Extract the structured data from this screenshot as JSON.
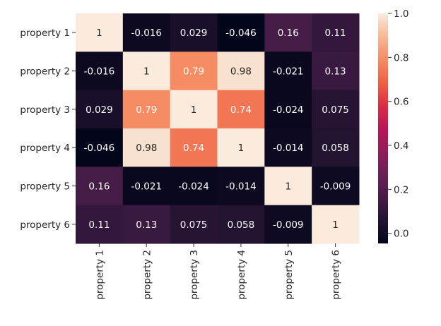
{
  "chart_data": {
    "type": "heatmap",
    "title": "",
    "xlabel": "",
    "ylabel": "",
    "row_labels": [
      "property 1",
      "property 2",
      "property 3",
      "property 4",
      "property 5",
      "property 6"
    ],
    "col_labels": [
      "property 1",
      "property 2",
      "property 3",
      "property 4",
      "property 5",
      "property 6"
    ],
    "values": [
      [
        1,
        -0.016,
        0.029,
        -0.046,
        0.16,
        0.11
      ],
      [
        -0.016,
        1,
        0.79,
        0.98,
        -0.021,
        0.13
      ],
      [
        0.029,
        0.79,
        1,
        0.74,
        -0.024,
        0.075
      ],
      [
        -0.046,
        0.98,
        0.74,
        1,
        -0.014,
        0.058
      ],
      [
        0.16,
        -0.021,
        -0.024,
        -0.014,
        1,
        -0.009
      ],
      [
        0.11,
        0.13,
        0.075,
        0.058,
        -0.009,
        1
      ]
    ],
    "annotations": [
      [
        "1",
        "-0.016",
        "0.029",
        "-0.046",
        "0.16",
        "0.11"
      ],
      [
        "-0.016",
        "1",
        "0.79",
        "0.98",
        "-0.021",
        "0.13"
      ],
      [
        "0.029",
        "0.79",
        "1",
        "0.74",
        "-0.024",
        "0.075"
      ],
      [
        "-0.046",
        "0.98",
        "0.74",
        "1",
        "-0.014",
        "0.058"
      ],
      [
        "0.16",
        "-0.021",
        "-0.024",
        "-0.014",
        "1",
        "-0.009"
      ],
      [
        "0.11",
        "0.13",
        "0.075",
        "0.058",
        "-0.009",
        "1"
      ]
    ],
    "colormap": "rocket",
    "color_range": [
      -0.046,
      1.0
    ],
    "colorbar": {
      "ticks": [
        0.0,
        0.2,
        0.4,
        0.6,
        0.8,
        1.0
      ],
      "tick_labels": [
        "0.0",
        "0.2",
        "0.4",
        "0.6",
        "0.8",
        "1.0"
      ],
      "placement": "right"
    },
    "grid": false
  }
}
